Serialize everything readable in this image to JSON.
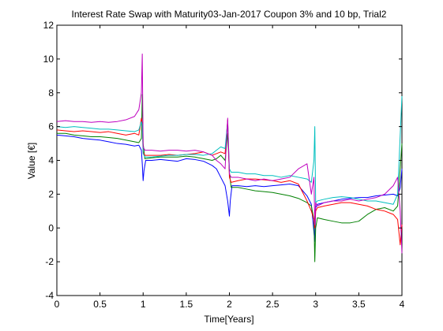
{
  "chart_data": {
    "type": "line",
    "title": "Interest Rate Swap with Maturity03-Jan-2017 Coupon 3% and 10 bp, Trial2",
    "xlabel": "Time[Years]",
    "ylabel": "Value [€]",
    "xlim": [
      0,
      4
    ],
    "ylim": [
      -4,
      12
    ],
    "x_ticks": [
      0,
      0.5,
      1,
      1.5,
      2,
      2.5,
      3,
      3.5,
      4
    ],
    "x_tick_labels": [
      "0",
      "0.5",
      "1",
      "1.5",
      "2",
      "2.5",
      "3",
      "3.5",
      "4"
    ],
    "y_ticks": [
      -4,
      -2,
      0,
      2,
      4,
      6,
      8,
      10,
      12
    ],
    "y_tick_labels": [
      "-4",
      "-2",
      "0",
      "2",
      "4",
      "6",
      "8",
      "10",
      "12"
    ],
    "grid": false,
    "series": [
      {
        "color": "#0000ff",
        "points": [
          [
            0,
            5.5
          ],
          [
            0.1,
            5.45
          ],
          [
            0.2,
            5.4
          ],
          [
            0.3,
            5.3
          ],
          [
            0.4,
            5.25
          ],
          [
            0.5,
            5.2
          ],
          [
            0.6,
            5.1
          ],
          [
            0.7,
            5.0
          ],
          [
            0.8,
            4.95
          ],
          [
            0.9,
            4.85
          ],
          [
            0.95,
            4.9
          ],
          [
            0.98,
            4.6
          ],
          [
            0.99,
            3.8
          ],
          [
            1.0,
            2.8
          ],
          [
            1.01,
            3.4
          ],
          [
            1.03,
            4.0
          ],
          [
            1.1,
            4.0
          ],
          [
            1.2,
            4.05
          ],
          [
            1.3,
            4.0
          ],
          [
            1.4,
            3.95
          ],
          [
            1.5,
            4.1
          ],
          [
            1.6,
            4.05
          ],
          [
            1.7,
            3.95
          ],
          [
            1.8,
            3.7
          ],
          [
            1.85,
            3.5
          ],
          [
            1.9,
            3.0
          ],
          [
            1.95,
            2.5
          ],
          [
            1.98,
            1.6
          ],
          [
            2.0,
            0.7
          ],
          [
            2.01,
            1.6
          ],
          [
            2.03,
            2.5
          ],
          [
            2.1,
            2.5
          ],
          [
            2.2,
            2.45
          ],
          [
            2.3,
            2.5
          ],
          [
            2.4,
            2.45
          ],
          [
            2.5,
            2.5
          ],
          [
            2.6,
            2.55
          ],
          [
            2.7,
            2.6
          ],
          [
            2.8,
            2.5
          ],
          [
            2.9,
            1.9
          ],
          [
            2.95,
            1.4
          ],
          [
            2.99,
            -0.8
          ],
          [
            3.0,
            1.2
          ],
          [
            3.02,
            1.4
          ],
          [
            3.1,
            1.5
          ],
          [
            3.2,
            1.6
          ],
          [
            3.3,
            1.7
          ],
          [
            3.4,
            1.75
          ],
          [
            3.5,
            1.8
          ],
          [
            3.6,
            1.8
          ],
          [
            3.7,
            1.9
          ],
          [
            3.8,
            1.95
          ],
          [
            3.9,
            2.0
          ],
          [
            3.95,
            1.9
          ],
          [
            3.98,
            2.4
          ],
          [
            4.0,
            3.5
          ]
        ]
      },
      {
        "color": "#008000",
        "points": [
          [
            0,
            5.6
          ],
          [
            0.1,
            5.6
          ],
          [
            0.2,
            5.5
          ],
          [
            0.3,
            5.45
          ],
          [
            0.4,
            5.4
          ],
          [
            0.5,
            5.4
          ],
          [
            0.6,
            5.35
          ],
          [
            0.7,
            5.3
          ],
          [
            0.8,
            5.2
          ],
          [
            0.9,
            5.1
          ],
          [
            0.95,
            5.05
          ],
          [
            0.98,
            5.3
          ],
          [
            0.99,
            7.9
          ],
          [
            1.0,
            5.0
          ],
          [
            1.02,
            4.1
          ],
          [
            1.1,
            4.15
          ],
          [
            1.2,
            4.2
          ],
          [
            1.3,
            4.2
          ],
          [
            1.4,
            4.2
          ],
          [
            1.5,
            4.25
          ],
          [
            1.6,
            4.2
          ],
          [
            1.7,
            4.1
          ],
          [
            1.8,
            4.0
          ],
          [
            1.85,
            4.1
          ],
          [
            1.9,
            4.3
          ],
          [
            1.95,
            4.0
          ],
          [
            1.98,
            5.6
          ],
          [
            2.0,
            3.3
          ],
          [
            2.02,
            2.4
          ],
          [
            2.1,
            2.4
          ],
          [
            2.2,
            2.3
          ],
          [
            2.3,
            2.2
          ],
          [
            2.4,
            2.15
          ],
          [
            2.5,
            2.1
          ],
          [
            2.6,
            2.0
          ],
          [
            2.7,
            1.9
          ],
          [
            2.8,
            1.75
          ],
          [
            2.9,
            1.5
          ],
          [
            2.95,
            1.3
          ],
          [
            2.98,
            0.5
          ],
          [
            2.99,
            -2.0
          ],
          [
            3.0,
            0.0
          ],
          [
            3.02,
            0.6
          ],
          [
            3.1,
            0.5
          ],
          [
            3.2,
            0.4
          ],
          [
            3.3,
            0.3
          ],
          [
            3.4,
            0.3
          ],
          [
            3.5,
            0.4
          ],
          [
            3.6,
            0.8
          ],
          [
            3.7,
            1.1
          ],
          [
            3.8,
            1.2
          ],
          [
            3.9,
            1.0
          ],
          [
            3.95,
            1.3
          ],
          [
            3.98,
            3.5
          ],
          [
            4.0,
            5.0
          ]
        ]
      },
      {
        "color": "#ff0000",
        "points": [
          [
            0,
            5.8
          ],
          [
            0.1,
            5.75
          ],
          [
            0.2,
            5.7
          ],
          [
            0.3,
            5.75
          ],
          [
            0.4,
            5.7
          ],
          [
            0.5,
            5.65
          ],
          [
            0.6,
            5.7
          ],
          [
            0.7,
            5.6
          ],
          [
            0.8,
            5.5
          ],
          [
            0.9,
            5.6
          ],
          [
            0.95,
            5.5
          ],
          [
            0.98,
            6.5
          ],
          [
            0.99,
            6.2
          ],
          [
            1.0,
            4.5
          ],
          [
            1.02,
            4.3
          ],
          [
            1.1,
            4.3
          ],
          [
            1.2,
            4.3
          ],
          [
            1.3,
            4.35
          ],
          [
            1.4,
            4.3
          ],
          [
            1.5,
            4.35
          ],
          [
            1.6,
            4.4
          ],
          [
            1.7,
            4.5
          ],
          [
            1.8,
            4.3
          ],
          [
            1.85,
            4.4
          ],
          [
            1.9,
            4.5
          ],
          [
            1.95,
            4.4
          ],
          [
            1.98,
            6.4
          ],
          [
            2.0,
            3.0
          ],
          [
            2.02,
            2.7
          ],
          [
            2.1,
            2.8
          ],
          [
            2.2,
            2.9
          ],
          [
            2.3,
            2.9
          ],
          [
            2.4,
            2.85
          ],
          [
            2.5,
            2.8
          ],
          [
            2.6,
            2.7
          ],
          [
            2.7,
            2.8
          ],
          [
            2.8,
            2.6
          ],
          [
            2.9,
            1.6
          ],
          [
            2.95,
            1.0
          ],
          [
            2.98,
            0.5
          ],
          [
            2.99,
            0.0
          ],
          [
            3.0,
            1.0
          ],
          [
            3.02,
            1.2
          ],
          [
            3.1,
            1.3
          ],
          [
            3.2,
            1.4
          ],
          [
            3.3,
            1.5
          ],
          [
            3.4,
            1.5
          ],
          [
            3.5,
            1.4
          ],
          [
            3.6,
            1.3
          ],
          [
            3.7,
            1.1
          ],
          [
            3.8,
            1.0
          ],
          [
            3.9,
            0.8
          ],
          [
            3.95,
            0.5
          ],
          [
            3.98,
            -1.0
          ],
          [
            4.0,
            0.2
          ]
        ]
      },
      {
        "color": "#00bfbf",
        "points": [
          [
            0,
            6.0
          ],
          [
            0.1,
            5.95
          ],
          [
            0.2,
            6.0
          ],
          [
            0.3,
            5.95
          ],
          [
            0.4,
            5.9
          ],
          [
            0.5,
            5.85
          ],
          [
            0.6,
            5.85
          ],
          [
            0.7,
            5.8
          ],
          [
            0.8,
            5.75
          ],
          [
            0.9,
            5.7
          ],
          [
            0.95,
            5.8
          ],
          [
            0.98,
            6.3
          ],
          [
            0.99,
            6.1
          ],
          [
            1.0,
            4.4
          ],
          [
            1.02,
            4.2
          ],
          [
            1.1,
            4.2
          ],
          [
            1.2,
            4.25
          ],
          [
            1.3,
            4.3
          ],
          [
            1.4,
            4.3
          ],
          [
            1.5,
            4.35
          ],
          [
            1.6,
            4.35
          ],
          [
            1.7,
            4.3
          ],
          [
            1.8,
            4.4
          ],
          [
            1.85,
            4.6
          ],
          [
            1.9,
            4.8
          ],
          [
            1.95,
            4.7
          ],
          [
            1.98,
            6.3
          ],
          [
            2.0,
            3.5
          ],
          [
            2.02,
            3.3
          ],
          [
            2.1,
            3.3
          ],
          [
            2.2,
            3.2
          ],
          [
            2.3,
            3.2
          ],
          [
            2.4,
            3.1
          ],
          [
            2.5,
            3.1
          ],
          [
            2.6,
            3.0
          ],
          [
            2.7,
            3.1
          ],
          [
            2.8,
            3.0
          ],
          [
            2.9,
            2.9
          ],
          [
            2.95,
            2.7
          ],
          [
            2.98,
            4.0
          ],
          [
            2.99,
            6.0
          ],
          [
            3.0,
            1.5
          ],
          [
            3.02,
            1.6
          ],
          [
            3.1,
            1.7
          ],
          [
            3.2,
            1.8
          ],
          [
            3.3,
            1.85
          ],
          [
            3.4,
            1.8
          ],
          [
            3.5,
            1.7
          ],
          [
            3.6,
            1.6
          ],
          [
            3.7,
            1.6
          ],
          [
            3.8,
            1.5
          ],
          [
            3.9,
            1.4
          ],
          [
            3.95,
            2.0
          ],
          [
            3.98,
            5.5
          ],
          [
            4.0,
            7.8
          ]
        ]
      },
      {
        "color": "#bf00bf",
        "points": [
          [
            0,
            6.3
          ],
          [
            0.1,
            6.35
          ],
          [
            0.2,
            6.3
          ],
          [
            0.3,
            6.3
          ],
          [
            0.4,
            6.25
          ],
          [
            0.5,
            6.3
          ],
          [
            0.6,
            6.25
          ],
          [
            0.7,
            6.3
          ],
          [
            0.8,
            6.4
          ],
          [
            0.9,
            6.6
          ],
          [
            0.95,
            7.0
          ],
          [
            0.98,
            8.0
          ],
          [
            0.99,
            10.3
          ],
          [
            1.0,
            4.8
          ],
          [
            1.02,
            4.6
          ],
          [
            1.1,
            4.6
          ],
          [
            1.2,
            4.55
          ],
          [
            1.3,
            4.6
          ],
          [
            1.4,
            4.6
          ],
          [
            1.5,
            4.55
          ],
          [
            1.6,
            4.6
          ],
          [
            1.7,
            4.5
          ],
          [
            1.8,
            4.3
          ],
          [
            1.85,
            4.0
          ],
          [
            1.9,
            3.8
          ],
          [
            1.95,
            3.5
          ],
          [
            1.98,
            6.5
          ],
          [
            2.0,
            3.2
          ],
          [
            2.02,
            3.0
          ],
          [
            2.1,
            3.0
          ],
          [
            2.2,
            2.9
          ],
          [
            2.3,
            2.8
          ],
          [
            2.4,
            2.9
          ],
          [
            2.5,
            2.8
          ],
          [
            2.6,
            2.9
          ],
          [
            2.7,
            3.0
          ],
          [
            2.8,
            3.5
          ],
          [
            2.9,
            3.8
          ],
          [
            2.95,
            2.0
          ],
          [
            2.98,
            3.0
          ],
          [
            2.99,
            0.2
          ],
          [
            3.0,
            1.5
          ],
          [
            3.02,
            1.3
          ],
          [
            3.1,
            1.5
          ],
          [
            3.2,
            1.6
          ],
          [
            3.3,
            1.6
          ],
          [
            3.4,
            1.7
          ],
          [
            3.5,
            1.6
          ],
          [
            3.6,
            1.7
          ],
          [
            3.7,
            1.8
          ],
          [
            3.8,
            2.0
          ],
          [
            3.9,
            2.5
          ],
          [
            3.95,
            3.0
          ],
          [
            3.98,
            1.0
          ],
          [
            4.0,
            -1.5
          ]
        ]
      }
    ]
  }
}
